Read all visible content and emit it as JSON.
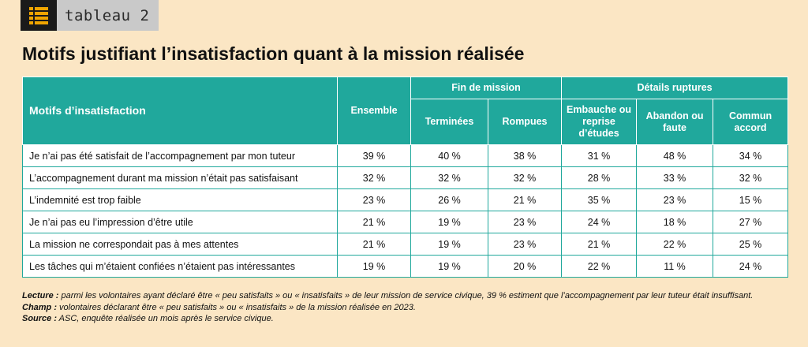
{
  "header": {
    "tag_icon": "table-icon",
    "tag_label": "tableau 2",
    "title": "Motifs justifiant l’insatisfaction quant à la mission réalisée"
  },
  "table": {
    "row_header": "Motifs d’insatisfaction",
    "col_ensemble": "Ensemble",
    "group_fin": "Fin de mission",
    "group_details": "Détails ruptures",
    "col_terminees": "Terminées",
    "col_rompues": "Rompues",
    "col_embauche": "Embauche ou reprise d’études",
    "col_abandon": "Abandon ou faute",
    "col_commun": "Commun accord",
    "rows": [
      {
        "label": "Je n’ai pas été satisfait de l’accompagnement par mon tuteur",
        "ensemble": "39 %",
        "terminees": "40 %",
        "rompues": "38 %",
        "embauche": "31 %",
        "abandon": "48 %",
        "commun": "34 %"
      },
      {
        "label": "L’accompagnement durant ma mission n’était pas satisfaisant",
        "ensemble": "32 %",
        "terminees": "32 %",
        "rompues": "32 %",
        "embauche": "28 %",
        "abandon": "33 %",
        "commun": "32 %"
      },
      {
        "label": "L’indemnité est trop faible",
        "ensemble": "23 %",
        "terminees": "26 %",
        "rompues": "21 %",
        "embauche": "35 %",
        "abandon": "23 %",
        "commun": "15 %"
      },
      {
        "label": "Je n’ai pas eu l’impression d’être utile",
        "ensemble": "21 %",
        "terminees": "19 %",
        "rompues": "23 %",
        "embauche": "24 %",
        "abandon": "18 %",
        "commun": "27 %"
      },
      {
        "label": "La mission ne correspondait pas à mes attentes",
        "ensemble": "21 %",
        "terminees": "19 %",
        "rompues": "23 %",
        "embauche": "21 %",
        "abandon": "22 %",
        "commun": "25 %"
      },
      {
        "label": "Les tâches qui m’étaient confiées n’étaient pas intéressantes",
        "ensemble": "19 %",
        "terminees": "19 %",
        "rompues": "20 %",
        "embauche": "22 %",
        "abandon": "11 %",
        "commun": "24 %"
      }
    ]
  },
  "notes": {
    "lecture_label": "Lecture :",
    "lecture_text": " parmi les volontaires ayant déclaré être « peu satisfaits » ou « insatisfaits » de leur mission de service civique, 39 % estiment que l’accompagnement par leur tuteur était insuffisant.",
    "champ_label": "Champ :",
    "champ_text": " volontaires déclarant être « peu satisfaits » ou « insatisfaits » de la mission réalisée en 2023.",
    "source_label": "Source :",
    "source_text": " ASC, enquête réalisée un mois après le service civique."
  },
  "colors": {
    "background": "#fbe6c4",
    "header_teal": "#20a89c"
  }
}
